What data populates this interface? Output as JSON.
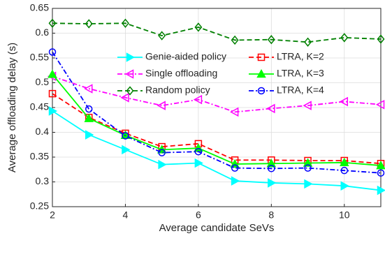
{
  "chart_data": {
    "type": "line",
    "xlabel": "Average candidate SeVs",
    "ylabel": "Average offloading delay (s)",
    "x": [
      2,
      3,
      4,
      5,
      6,
      7,
      8,
      9,
      10,
      11
    ],
    "xlim": [
      2,
      11
    ],
    "xticks": [
      2,
      4,
      6,
      8,
      10
    ],
    "ylim": [
      0.25,
      0.65
    ],
    "yticks": [
      0.25,
      0.3,
      0.35,
      0.4,
      0.45,
      0.5,
      0.55,
      0.6,
      0.65
    ],
    "grid": true,
    "legend": "upper right",
    "series": [
      {
        "name": "Genie-aided policy",
        "color": "#00ffff",
        "marker": "triangle-right",
        "dash": "solid",
        "values": [
          0.443,
          0.395,
          0.365,
          0.335,
          0.338,
          0.302,
          0.298,
          0.296,
          0.292,
          0.283
        ]
      },
      {
        "name": "Single offloading",
        "color": "#ff00ff",
        "marker": "triangle-left",
        "dash": "dashdot",
        "values": [
          0.513,
          0.488,
          0.47,
          0.454,
          0.466,
          0.441,
          0.448,
          0.454,
          0.462,
          0.456
        ]
      },
      {
        "name": "Random policy",
        "color": "#008000",
        "marker": "diamond",
        "dash": "dashed",
        "values": [
          0.62,
          0.619,
          0.62,
          0.595,
          0.612,
          0.586,
          0.587,
          0.582,
          0.591,
          0.588
        ]
      },
      {
        "name": "LTRA, K=2",
        "color": "#ff0000",
        "marker": "square",
        "dash": "dashed",
        "values": [
          0.478,
          0.43,
          0.398,
          0.371,
          0.377,
          0.344,
          0.344,
          0.343,
          0.343,
          0.337
        ]
      },
      {
        "name": "LTRA, K=3",
        "color": "#00ff00",
        "marker": "triangle-up",
        "dash": "solid",
        "values": [
          0.517,
          0.428,
          0.394,
          0.365,
          0.368,
          0.336,
          0.337,
          0.338,
          0.339,
          0.333
        ]
      },
      {
        "name": "LTRA, K=4",
        "color": "#0000ff",
        "marker": "circle",
        "dash": "dashdot",
        "values": [
          0.562,
          0.447,
          0.393,
          0.359,
          0.361,
          0.328,
          0.327,
          0.328,
          0.323,
          0.318
        ]
      }
    ]
  }
}
